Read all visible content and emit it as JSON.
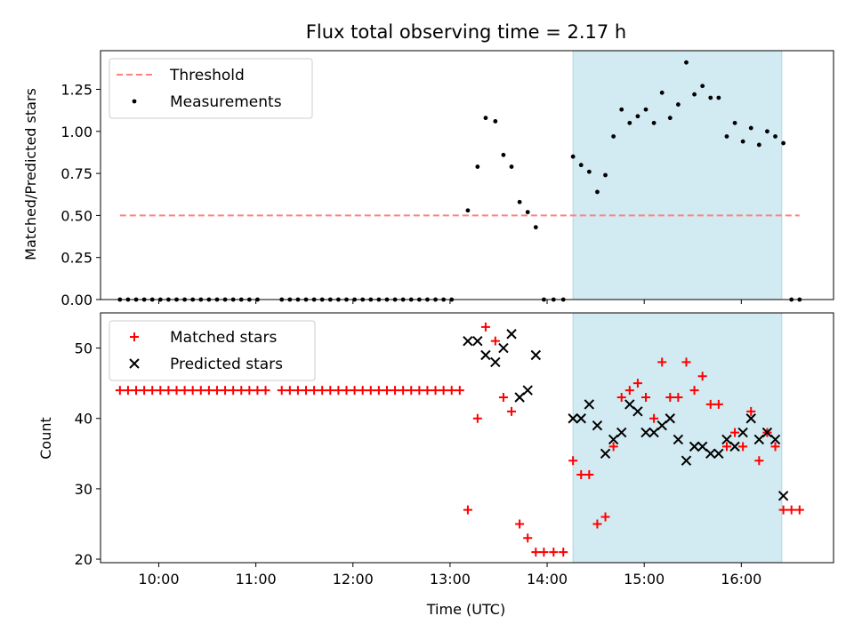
{
  "chart_data": [
    {
      "type": "scatter",
      "title": "Flux total observing time = 2.17 h",
      "ylabel": "Matched/Predicted stars",
      "xlabel": "",
      "xlim": [
        "09:24",
        "16:57"
      ],
      "ylim": [
        0,
        1.48
      ],
      "yticks": [
        0.0,
        0.25,
        0.5,
        0.75,
        1.0,
        1.25
      ],
      "ytick_labels": [
        "0.00",
        "0.25",
        "0.50",
        "0.75",
        "1.00",
        "1.25"
      ],
      "grid": false,
      "legend_position": "top-left",
      "shaded_interval": {
        "start": "14:16",
        "end": "16:25",
        "color": "#add8e6"
      },
      "threshold": {
        "name": "Threshold",
        "value": 0.5,
        "x_start": "09:36",
        "x_end": "16:36",
        "color": "#ff8080",
        "style": "dashed"
      },
      "series": [
        {
          "name": "Measurements",
          "marker": "dot",
          "color": "#000000",
          "points": [
            [
              "09:36",
              0
            ],
            [
              "09:41",
              0
            ],
            [
              "09:46",
              0
            ],
            [
              "09:51",
              0
            ],
            [
              "09:56",
              0
            ],
            [
              "10:01",
              0
            ],
            [
              "10:06",
              0
            ],
            [
              "10:11",
              0
            ],
            [
              "10:16",
              0
            ],
            [
              "10:21",
              0
            ],
            [
              "10:26",
              0
            ],
            [
              "10:31",
              0
            ],
            [
              "10:36",
              0
            ],
            [
              "10:41",
              0
            ],
            [
              "10:46",
              0
            ],
            [
              "10:51",
              0
            ],
            [
              "10:56",
              0
            ],
            [
              "11:01",
              0
            ],
            [
              "11:16",
              0
            ],
            [
              "11:21",
              0
            ],
            [
              "11:26",
              0
            ],
            [
              "11:31",
              0
            ],
            [
              "11:36",
              0
            ],
            [
              "11:41",
              0
            ],
            [
              "11:46",
              0
            ],
            [
              "11:51",
              0
            ],
            [
              "11:56",
              0
            ],
            [
              "12:01",
              0
            ],
            [
              "12:06",
              0
            ],
            [
              "12:11",
              0
            ],
            [
              "12:16",
              0
            ],
            [
              "12:21",
              0
            ],
            [
              "12:26",
              0
            ],
            [
              "12:31",
              0
            ],
            [
              "12:36",
              0
            ],
            [
              "12:41",
              0
            ],
            [
              "12:46",
              0
            ],
            [
              "12:51",
              0
            ],
            [
              "12:56",
              0
            ],
            [
              "13:01",
              0
            ],
            [
              "13:11",
              0.53
            ],
            [
              "13:17",
              0.79
            ],
            [
              "13:22",
              1.08
            ],
            [
              "13:28",
              1.06
            ],
            [
              "13:33",
              0.86
            ],
            [
              "13:38",
              0.79
            ],
            [
              "13:43",
              0.58
            ],
            [
              "13:48",
              0.52
            ],
            [
              "13:53",
              0.43
            ],
            [
              "13:58",
              0
            ],
            [
              "14:04",
              0
            ],
            [
              "14:10",
              0
            ],
            [
              "14:16",
              0.85
            ],
            [
              "14:21",
              0.8
            ],
            [
              "14:26",
              0.76
            ],
            [
              "14:31",
              0.64
            ],
            [
              "14:36",
              0.74
            ],
            [
              "14:41",
              0.97
            ],
            [
              "14:46",
              1.13
            ],
            [
              "14:51",
              1.05
            ],
            [
              "14:56",
              1.09
            ],
            [
              "15:01",
              1.13
            ],
            [
              "15:06",
              1.05
            ],
            [
              "15:11",
              1.23
            ],
            [
              "15:16",
              1.08
            ],
            [
              "15:21",
              1.16
            ],
            [
              "15:26",
              1.41
            ],
            [
              "15:31",
              1.22
            ],
            [
              "15:36",
              1.27
            ],
            [
              "15:41",
              1.2
            ],
            [
              "15:46",
              1.2
            ],
            [
              "15:51",
              0.97
            ],
            [
              "15:56",
              1.05
            ],
            [
              "16:01",
              0.94
            ],
            [
              "16:06",
              1.02
            ],
            [
              "16:11",
              0.92
            ],
            [
              "16:16",
              1.0
            ],
            [
              "16:21",
              0.97
            ],
            [
              "16:26",
              0.93
            ],
            [
              "16:31",
              0
            ],
            [
              "16:36",
              0
            ]
          ]
        }
      ]
    },
    {
      "type": "scatter",
      "title": "",
      "ylabel": "Count",
      "xlabel": "Time (UTC)",
      "xlim": [
        "09:24",
        "16:57"
      ],
      "ylim": [
        19.5,
        55
      ],
      "yticks": [
        20,
        30,
        40,
        50
      ],
      "ytick_labels": [
        "20",
        "30",
        "40",
        "50"
      ],
      "xticks": [
        "10:00",
        "11:00",
        "12:00",
        "13:00",
        "14:00",
        "15:00",
        "16:00"
      ],
      "xtick_labels": [
        "10:00",
        "11:00",
        "12:00",
        "13:00",
        "14:00",
        "15:00",
        "16:00"
      ],
      "grid": false,
      "legend_position": "top-left",
      "shaded_interval": {
        "start": "14:16",
        "end": "16:25",
        "color": "#add8e6"
      },
      "series": [
        {
          "name": "Matched stars",
          "marker": "plus",
          "color": "#ff0000",
          "points": [
            [
              "09:36",
              44
            ],
            [
              "09:41",
              44
            ],
            [
              "09:46",
              44
            ],
            [
              "09:51",
              44
            ],
            [
              "09:56",
              44
            ],
            [
              "10:01",
              44
            ],
            [
              "10:06",
              44
            ],
            [
              "10:11",
              44
            ],
            [
              "10:16",
              44
            ],
            [
              "10:21",
              44
            ],
            [
              "10:26",
              44
            ],
            [
              "10:31",
              44
            ],
            [
              "10:36",
              44
            ],
            [
              "10:41",
              44
            ],
            [
              "10:46",
              44
            ],
            [
              "10:51",
              44
            ],
            [
              "10:56",
              44
            ],
            [
              "11:01",
              44
            ],
            [
              "11:06",
              44
            ],
            [
              "11:16",
              44
            ],
            [
              "11:21",
              44
            ],
            [
              "11:26",
              44
            ],
            [
              "11:31",
              44
            ],
            [
              "11:36",
              44
            ],
            [
              "11:41",
              44
            ],
            [
              "11:46",
              44
            ],
            [
              "11:51",
              44
            ],
            [
              "11:56",
              44
            ],
            [
              "12:01",
              44
            ],
            [
              "12:06",
              44
            ],
            [
              "12:11",
              44
            ],
            [
              "12:16",
              44
            ],
            [
              "12:21",
              44
            ],
            [
              "12:26",
              44
            ],
            [
              "12:31",
              44
            ],
            [
              "12:36",
              44
            ],
            [
              "12:41",
              44
            ],
            [
              "12:46",
              44
            ],
            [
              "12:51",
              44
            ],
            [
              "12:56",
              44
            ],
            [
              "13:01",
              44
            ],
            [
              "13:06",
              44
            ],
            [
              "13:11",
              27
            ],
            [
              "13:17",
              40
            ],
            [
              "13:22",
              53
            ],
            [
              "13:28",
              51
            ],
            [
              "13:33",
              43
            ],
            [
              "13:38",
              41
            ],
            [
              "13:43",
              25
            ],
            [
              "13:48",
              23
            ],
            [
              "13:53",
              21
            ],
            [
              "13:58",
              21
            ],
            [
              "14:04",
              21
            ],
            [
              "14:10",
              21
            ],
            [
              "14:16",
              34
            ],
            [
              "14:21",
              32
            ],
            [
              "14:26",
              32
            ],
            [
              "14:31",
              25
            ],
            [
              "14:36",
              26
            ],
            [
              "14:41",
              36
            ],
            [
              "14:46",
              43
            ],
            [
              "14:51",
              44
            ],
            [
              "14:56",
              45
            ],
            [
              "15:01",
              43
            ],
            [
              "15:06",
              40
            ],
            [
              "15:11",
              48
            ],
            [
              "15:16",
              43
            ],
            [
              "15:21",
              43
            ],
            [
              "15:26",
              48
            ],
            [
              "15:31",
              44
            ],
            [
              "15:36",
              46
            ],
            [
              "15:41",
              42
            ],
            [
              "15:46",
              42
            ],
            [
              "15:51",
              36
            ],
            [
              "15:56",
              38
            ],
            [
              "16:01",
              36
            ],
            [
              "16:06",
              41
            ],
            [
              "16:11",
              34
            ],
            [
              "16:16",
              38
            ],
            [
              "16:21",
              36
            ],
            [
              "16:26",
              27
            ],
            [
              "16:31",
              27
            ],
            [
              "16:36",
              27
            ]
          ]
        },
        {
          "name": "Predicted stars",
          "marker": "x",
          "color": "#000000",
          "points": [
            [
              "13:11",
              51
            ],
            [
              "13:17",
              51
            ],
            [
              "13:22",
              49
            ],
            [
              "13:28",
              48
            ],
            [
              "13:33",
              50
            ],
            [
              "13:38",
              52
            ],
            [
              "13:43",
              43
            ],
            [
              "13:48",
              44
            ],
            [
              "13:53",
              49
            ],
            [
              "14:16",
              40
            ],
            [
              "14:21",
              40
            ],
            [
              "14:26",
              42
            ],
            [
              "14:31",
              39
            ],
            [
              "14:36",
              35
            ],
            [
              "14:41",
              37
            ],
            [
              "14:46",
              38
            ],
            [
              "14:51",
              42
            ],
            [
              "14:56",
              41
            ],
            [
              "15:01",
              38
            ],
            [
              "15:06",
              38
            ],
            [
              "15:11",
              39
            ],
            [
              "15:16",
              40
            ],
            [
              "15:21",
              37
            ],
            [
              "15:26",
              34
            ],
            [
              "15:31",
              36
            ],
            [
              "15:36",
              36
            ],
            [
              "15:41",
              35
            ],
            [
              "15:46",
              35
            ],
            [
              "15:51",
              37
            ],
            [
              "15:56",
              36
            ],
            [
              "16:01",
              38
            ],
            [
              "16:06",
              40
            ],
            [
              "16:11",
              37
            ],
            [
              "16:16",
              38
            ],
            [
              "16:21",
              37
            ],
            [
              "16:26",
              29
            ]
          ]
        }
      ]
    }
  ]
}
